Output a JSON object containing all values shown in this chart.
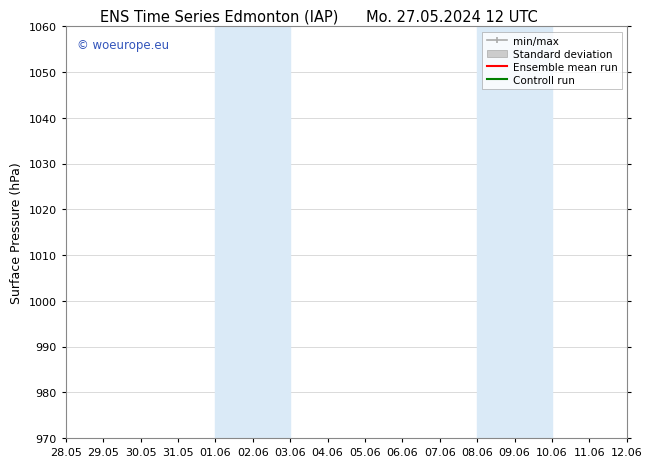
{
  "title_left": "ENS Time Series Edmonton (IAP)",
  "title_right": "Mo. 27.05.2024 12 UTC",
  "ylabel": "Surface Pressure (hPa)",
  "ylim": [
    970,
    1060
  ],
  "yticks": [
    970,
    980,
    990,
    1000,
    1010,
    1020,
    1030,
    1040,
    1050,
    1060
  ],
  "xtick_labels": [
    "28.05",
    "29.05",
    "30.05",
    "31.05",
    "01.06",
    "02.06",
    "03.06",
    "04.06",
    "05.06",
    "06.06",
    "07.06",
    "08.06",
    "09.06",
    "10.06",
    "11.06",
    "12.06"
  ],
  "xtick_positions": [
    0,
    1,
    2,
    3,
    4,
    5,
    6,
    7,
    8,
    9,
    10,
    11,
    12,
    13,
    14,
    15
  ],
  "x_total": 15,
  "shaded_regions": [
    {
      "x_start": 4,
      "x_end": 6,
      "color": "#daeaf7"
    },
    {
      "x_start": 11,
      "x_end": 13,
      "color": "#daeaf7"
    }
  ],
  "legend_entries": [
    {
      "label": "min/max",
      "color": "#aaaaaa",
      "lw": 1.2
    },
    {
      "label": "Standard deviation",
      "color": "#cccccc",
      "lw": 6
    },
    {
      "label": "Ensemble mean run",
      "color": "red",
      "lw": 1.5
    },
    {
      "label": "Controll run",
      "color": "green",
      "lw": 1.5
    }
  ],
  "watermark": "© woeurope.eu",
  "watermark_color": "#3355bb",
  "bg_color": "#ffffff",
  "plot_bg_color": "#ffffff",
  "grid_color": "#cccccc",
  "title_fontsize": 10.5,
  "label_fontsize": 9,
  "tick_fontsize": 8,
  "legend_fontsize": 7.5
}
